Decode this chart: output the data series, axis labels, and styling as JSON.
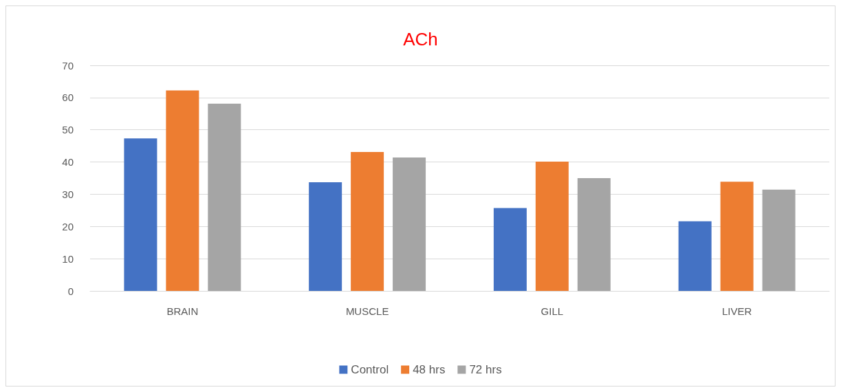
{
  "chart_data": {
    "type": "bar",
    "title": "ACh",
    "categories": [
      "BRAIN",
      "MUSCLE",
      "GILL",
      "LIVER"
    ],
    "series": [
      {
        "name": "Control",
        "color": "#4472c4",
        "values": [
          47.3,
          33.7,
          25.7,
          21.6
        ]
      },
      {
        "name": "48 hrs",
        "color": "#ed7d31",
        "values": [
          62.2,
          43.1,
          40.1,
          33.9
        ]
      },
      {
        "name": "72 hrs",
        "color": "#a5a5a5",
        "values": [
          58.1,
          41.4,
          35.0,
          31.4
        ]
      }
    ],
    "ylim": [
      0,
      70
    ],
    "yticks": [
      0,
      10,
      20,
      30,
      40,
      50,
      60,
      70
    ],
    "grid": "y",
    "legend": "bottom"
  }
}
